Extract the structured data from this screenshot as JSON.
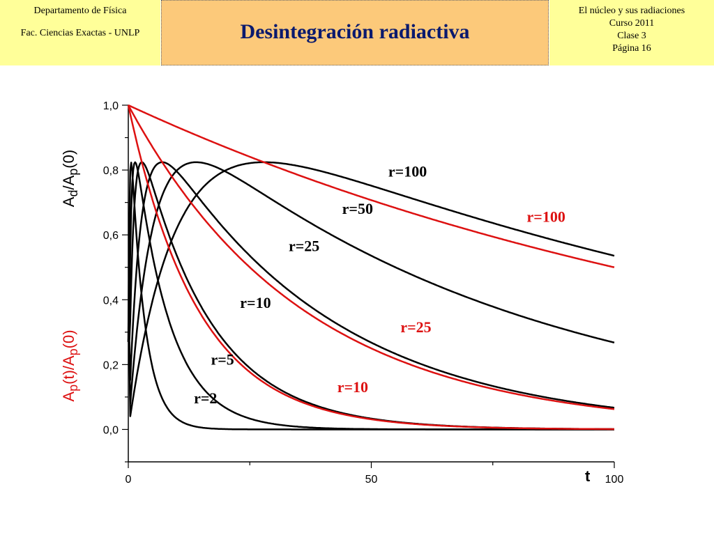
{
  "header": {
    "left_line1": "Departamento de Física",
    "left_line2": "Fac. Ciencias Exactas - UNLP",
    "title": "Desintegración radiactiva",
    "right_line1": "El núcleo y sus radiaciones",
    "right_line2": "Curso 2011",
    "right_line3": "Clase 3",
    "right_line4": "Página 16"
  },
  "chart_data": {
    "type": "line",
    "xlabel": "t",
    "ylabel_black": "Ad/Ap(0)",
    "ylabel_red": "Ap(t)/Ap(0)",
    "xlim": [
      0,
      100
    ],
    "ylim": [
      -0.1,
      1.0
    ],
    "x_ticks": [
      0,
      50,
      100
    ],
    "y_ticks": [
      "0,0",
      "0,2",
      "0,4",
      "0,6",
      "0,8",
      "1,0"
    ],
    "colors": {
      "black": "#000000",
      "red": "#dd1111"
    },
    "series": [
      {
        "name": "r=2",
        "color": "black",
        "r": 2
      },
      {
        "name": "r=5",
        "color": "black",
        "r": 5
      },
      {
        "name": "r=10",
        "color": "black",
        "r": 10
      },
      {
        "name": "r=25",
        "color": "black",
        "r": 25
      },
      {
        "name": "r=50",
        "color": "black",
        "r": 50
      },
      {
        "name": "r=100",
        "color": "black",
        "r": 100
      },
      {
        "name": "r=10",
        "color": "red",
        "r": 10
      },
      {
        "name": "r=25",
        "color": "red",
        "r": 25
      },
      {
        "name": "r=100",
        "color": "red",
        "r": 100
      }
    ],
    "annotations": [
      {
        "text": "r=100",
        "color": "black",
        "x": 53.5,
        "y": 0.78
      },
      {
        "text": "r=50",
        "color": "black",
        "x": 44,
        "y": 0.665
      },
      {
        "text": "r=25",
        "color": "black",
        "x": 33,
        "y": 0.55
      },
      {
        "text": "r=10",
        "color": "black",
        "x": 23,
        "y": 0.375
      },
      {
        "text": "r=5",
        "color": "black",
        "x": 17,
        "y": 0.2
      },
      {
        "text": "r=2",
        "color": "black",
        "x": 13.5,
        "y": 0.08
      },
      {
        "text": "r=100",
        "color": "red",
        "x": 82,
        "y": 0.64
      },
      {
        "text": "r=25",
        "color": "red",
        "x": 56,
        "y": 0.3
      },
      {
        "text": "r=10",
        "color": "red",
        "x": 43,
        "y": 0.115
      }
    ]
  }
}
